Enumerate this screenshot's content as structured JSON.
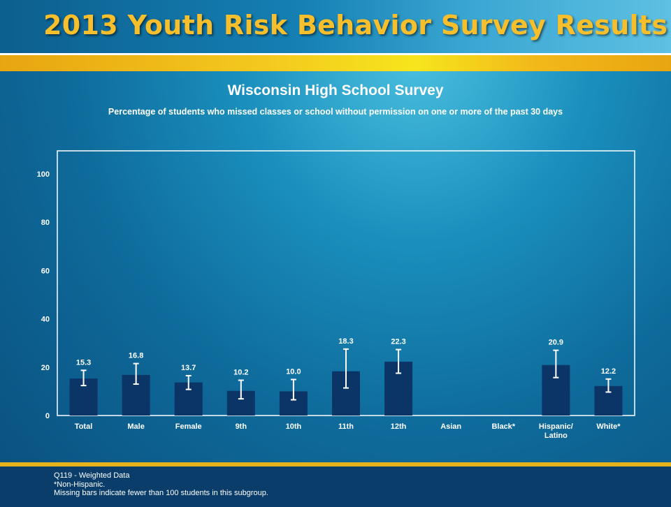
{
  "header": {
    "title": "2013 Youth Risk Behavior Survey Results"
  },
  "chart_data": {
    "type": "bar",
    "title": "Wisconsin High School Survey",
    "subtitle": "Percentage of students who missed classes or school without permission on one or more of the past 30 days",
    "xlabel": "",
    "ylabel": "",
    "ylim": [
      0,
      100
    ],
    "yticks": [
      0,
      20,
      40,
      60,
      80,
      100
    ],
    "grid": false,
    "error_bars": true,
    "bar_color": "#0b3566",
    "categories": [
      {
        "lines": [
          "Total"
        ],
        "value": 15.3,
        "ci": [
          12.4,
          18.7
        ]
      },
      {
        "lines": [
          "Male"
        ],
        "value": 16.8,
        "ci": [
          13.0,
          21.5
        ]
      },
      {
        "lines": [
          "Female"
        ],
        "value": 13.7,
        "ci": [
          10.8,
          16.5
        ]
      },
      {
        "lines": [
          "9th"
        ],
        "value": 10.2,
        "ci": [
          6.9,
          14.6
        ]
      },
      {
        "lines": [
          "10th"
        ],
        "value": 10.0,
        "ci": [
          6.5,
          14.9
        ]
      },
      {
        "lines": [
          "11th"
        ],
        "value": 18.3,
        "ci": [
          11.4,
          27.5
        ]
      },
      {
        "lines": [
          "12th"
        ],
        "value": 22.3,
        "ci": [
          17.5,
          27.3
        ]
      },
      {
        "lines": [
          "Asian"
        ],
        "value": null,
        "ci": null
      },
      {
        "lines": [
          "Black*"
        ],
        "value": null,
        "ci": null
      },
      {
        "lines": [
          "Hispanic/",
          "Latino"
        ],
        "value": 20.9,
        "ci": [
          15.7,
          27.0
        ]
      },
      {
        "lines": [
          "White*"
        ],
        "value": 12.2,
        "ci": [
          9.7,
          15.1
        ]
      }
    ]
  },
  "footnotes": {
    "line1": "Q119 - Weighted Data",
    "line2": "*Non-Hispanic.",
    "line3": "Missing bars indicate fewer than 100 students in this subgroup."
  }
}
